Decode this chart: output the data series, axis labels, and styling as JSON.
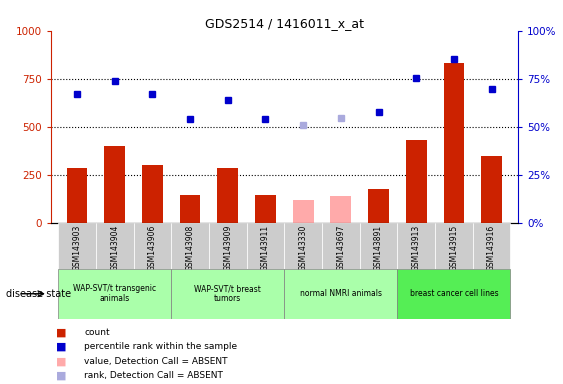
{
  "title": "GDS2514 / 1416011_x_at",
  "samples": [
    "GSM143903",
    "GSM143904",
    "GSM143906",
    "GSM143908",
    "GSM143909",
    "GSM143911",
    "GSM143330",
    "GSM143697",
    "GSM143891",
    "GSM143913",
    "GSM143915",
    "GSM143916"
  ],
  "counts": [
    285,
    400,
    300,
    145,
    285,
    145,
    null,
    null,
    175,
    430,
    830,
    350
  ],
  "counts_absent": [
    null,
    null,
    null,
    null,
    null,
    null,
    120,
    140,
    null,
    null,
    null,
    null
  ],
  "percentile_ranks": [
    670,
    740,
    670,
    540,
    640,
    540,
    null,
    null,
    575,
    755,
    855,
    695
  ],
  "percentile_ranks_absent": [
    null,
    null,
    null,
    null,
    null,
    null,
    510,
    545,
    null,
    null,
    null,
    null
  ],
  "absent_flags": [
    false,
    false,
    false,
    false,
    false,
    false,
    true,
    true,
    false,
    false,
    false,
    false
  ],
  "groups": [
    {
      "label": "WAP-SVT/t transgenic\nanimals",
      "start": 0,
      "end": 2,
      "color": "#aaffaa"
    },
    {
      "label": "WAP-SVT/t breast\ntumors",
      "start": 3,
      "end": 5,
      "color": "#aaffaa"
    },
    {
      "label": "normal NMRI animals",
      "start": 6,
      "end": 8,
      "color": "#aaffaa"
    },
    {
      "label": "breast cancer cell lines",
      "start": 9,
      "end": 11,
      "color": "#55ee55"
    }
  ],
  "ylim_left": [
    0,
    1000
  ],
  "yticks_left": [
    0,
    250,
    500,
    750,
    1000
  ],
  "ytick_labels_left": [
    "0",
    "250",
    "500",
    "750",
    "1000"
  ],
  "ytick_labels_right": [
    "0%",
    "25%",
    "50%",
    "75%",
    "100%"
  ],
  "bar_color": "#cc2200",
  "bar_absent_color": "#ffaaaa",
  "dot_color": "#0000cc",
  "dot_absent_color": "#aaaadd",
  "bar_width": 0.55,
  "bg_color": "#ffffff",
  "sample_bg_color": "#cccccc",
  "legend_items": [
    {
      "color": "#cc2200",
      "label": "count"
    },
    {
      "color": "#0000cc",
      "label": "percentile rank within the sample"
    },
    {
      "color": "#ffaaaa",
      "label": "value, Detection Call = ABSENT"
    },
    {
      "color": "#aaaadd",
      "label": "rank, Detection Call = ABSENT"
    }
  ]
}
